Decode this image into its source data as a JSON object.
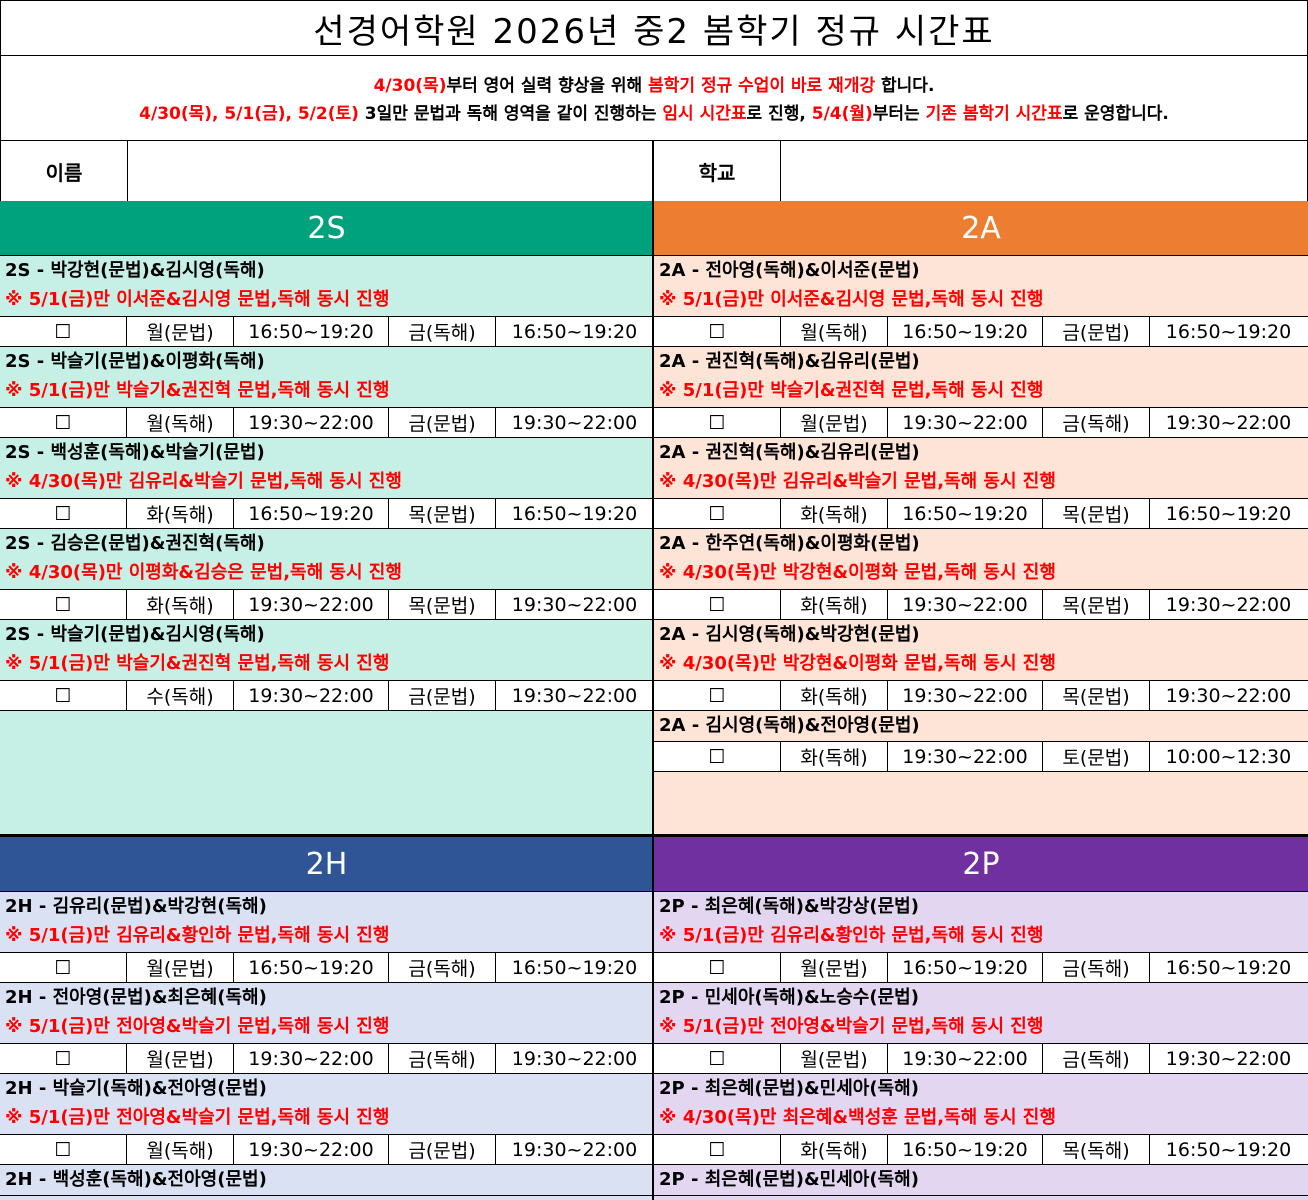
{
  "title": "선경어학원 2026년 중2 봄학기 정규 시간표",
  "notice": {
    "line1": [
      {
        "text": "4/30(목)",
        "red": true
      },
      {
        "text": "부터 영어 실력 향상을 위해 ",
        "red": false
      },
      {
        "text": "봄학기 정규 수업이 바로 재개강",
        "red": true
      },
      {
        "text": " 합니다.",
        "red": false
      }
    ],
    "line2": [
      {
        "text": "4/30(목), 5/1(금), 5/2(토)",
        "red": true
      },
      {
        "text": " 3일만 문법과 독해 영역을 같이 진행하는 ",
        "red": false
      },
      {
        "text": "임시 시간표",
        "red": true
      },
      {
        "text": "로 진행, ",
        "red": false
      },
      {
        "text": "5/4(월)",
        "red": true
      },
      {
        "text": "부터는 ",
        "red": false
      },
      {
        "text": "기존 봄학기 시간표",
        "red": true
      },
      {
        "text": "로 운영합니다.",
        "red": false
      }
    ]
  },
  "info": {
    "name_label": "이름",
    "name_value": "",
    "school_label": "학교",
    "school_value": ""
  },
  "checkbox": "☐",
  "colors": {
    "2S_head": "#00a27e",
    "2S_bg": "#c6efe6",
    "2A_head": "#ed7d31",
    "2A_bg": "#fde4d6",
    "2H_head": "#2f5597",
    "2H_bg": "#dae1f3",
    "2P_head": "#7030a0",
    "2P_bg": "#e3d6f1"
  },
  "sections": [
    {
      "id": "2S",
      "name": "2S",
      "blocks": [
        {
          "title": "2S - 박강현(문법)&김시영(독해)",
          "note": "※ 5/1(금)만 이서준&김시영 문법,독해 동시 진행",
          "d1": "월(문법)",
          "t1": "16:50~19:20",
          "d2": "금(독해)",
          "t2": "16:50~19:20"
        },
        {
          "title": "2S - 박슬기(문법)&이평화(독해)",
          "note": "※ 5/1(금)만 박슬기&권진혁 문법,독해 동시 진행",
          "d1": "월(독해)",
          "t1": "19:30~22:00",
          "d2": "금(문법)",
          "t2": "19:30~22:00"
        },
        {
          "title": "2S - 백성훈(독해)&박슬기(문법)",
          "note": "※ 4/30(목)만 김유리&박슬기 문법,독해 동시 진행",
          "d1": "화(독해)",
          "t1": "16:50~19:20",
          "d2": "목(문법)",
          "t2": "16:50~19:20"
        },
        {
          "title": "2S - 김승은(문법)&권진혁(독해)",
          "note": "※ 4/30(목)만 이평화&김승은 문법,독해 동시 진행",
          "d1": "화(독해)",
          "t1": "19:30~22:00",
          "d2": "목(문법)",
          "t2": "19:30~22:00"
        },
        {
          "title": "2S - 박슬기(문법)&김시영(독해)",
          "note": "※ 5/1(금)만 박슬기&권진혁 문법,독해 동시 진행",
          "d1": "수(독해)",
          "t1": "19:30~22:00",
          "d2": "금(문법)",
          "t2": "19:30~22:00"
        }
      ]
    },
    {
      "id": "2A",
      "name": "2A",
      "blocks": [
        {
          "title": "2A - 전아영(독해)&이서준(문법)",
          "note": "※ 5/1(금)만 이서준&김시영 문법,독해 동시 진행",
          "d1": "월(독해)",
          "t1": "16:50~19:20",
          "d2": "금(문법)",
          "t2": "16:50~19:20"
        },
        {
          "title": "2A - 권진혁(독해)&김유리(문법)",
          "note": "※ 5/1(금)만 박슬기&권진혁 문법,독해 동시 진행",
          "d1": "월(문법)",
          "t1": "19:30~22:00",
          "d2": "금(독해)",
          "t2": "19:30~22:00"
        },
        {
          "title": "2A - 권진혁(독해)&김유리(문법)",
          "note": "※ 4/30(목)만 김유리&박슬기 문법,독해 동시 진행",
          "d1": "화(독해)",
          "t1": "16:50~19:20",
          "d2": "목(문법)",
          "t2": "16:50~19:20"
        },
        {
          "title": "2A - 한주연(독해)&이평화(문법)",
          "note": "※ 4/30(목)만 박강현&이평화 문법,독해 동시 진행",
          "d1": "화(독해)",
          "t1": "19:30~22:00",
          "d2": "목(문법)",
          "t2": "19:30~22:00"
        },
        {
          "title": "2A - 김시영(독해)&박강현(문법)",
          "note": "※ 4/30(목)만 박강현&이평화 문법,독해 동시 진행",
          "d1": "화(독해)",
          "t1": "19:30~22:00",
          "d2": "목(문법)",
          "t2": "19:30~22:00"
        },
        {
          "title": "2A - 김시영(독해)&전아영(문법)",
          "note": "",
          "d1": "화(독해)",
          "t1": "19:30~22:00",
          "d2": "토(문법)",
          "t2": "10:00~12:30"
        }
      ]
    },
    {
      "id": "2H",
      "name": "2H",
      "blocks": [
        {
          "title": "2H - 김유리(문법)&박강현(독해)",
          "note": "※ 5/1(금)만 김유리&황인하 문법,독해 동시 진행",
          "d1": "월(문법)",
          "t1": "16:50~19:20",
          "d2": "금(독해)",
          "t2": "16:50~19:20"
        },
        {
          "title": "2H - 전아영(문법)&최은혜(독해)",
          "note": "※ 5/1(금)만 전아영&박슬기 문법,독해 동시 진행",
          "d1": "월(문법)",
          "t1": "19:30~22:00",
          "d2": "금(독해)",
          "t2": "19:30~22:00"
        },
        {
          "title": "2H - 박슬기(독해)&전아영(문법)",
          "note": "※ 5/1(금)만 전아영&박슬기 문법,독해 동시 진행",
          "d1": "월(독해)",
          "t1": "19:30~22:00",
          "d2": "금(문법)",
          "t2": "19:30~22:00"
        },
        {
          "title": "2H - 백성훈(독해)&전아영(문법)",
          "note": "",
          "d1": "",
          "t1": "",
          "d2": "",
          "t2": ""
        }
      ]
    },
    {
      "id": "2P",
      "name": "2P",
      "blocks": [
        {
          "title": "2P - 최은혜(독해)&박강상(문법)",
          "note": "※ 5/1(금)만 김유리&황인하 문법,독해 동시 진행",
          "d1": "월(문법)",
          "t1": "16:50~19:20",
          "d2": "금(독해)",
          "t2": "16:50~19:20"
        },
        {
          "title": "2P - 민세아(독해)&노승수(문법)",
          "note": "※ 5/1(금)만 전아영&박슬기 문법,독해 동시 진행",
          "d1": "월(문법)",
          "t1": "19:30~22:00",
          "d2": "금(독해)",
          "t2": "19:30~22:00"
        },
        {
          "title": "2P - 최은혜(문법)&민세아(독해)",
          "note": "※ 4/30(목)만 최은혜&백성훈 문법,독해 동시 진행",
          "d1": "화(독해)",
          "t1": "16:50~19:20",
          "d2": "목(독해)",
          "t2": "16:50~19:20"
        },
        {
          "title": "2P - 최은혜(문법)&민세아(독해)",
          "note": "",
          "d1": "",
          "t1": "",
          "d2": "",
          "t2": ""
        }
      ]
    }
  ]
}
